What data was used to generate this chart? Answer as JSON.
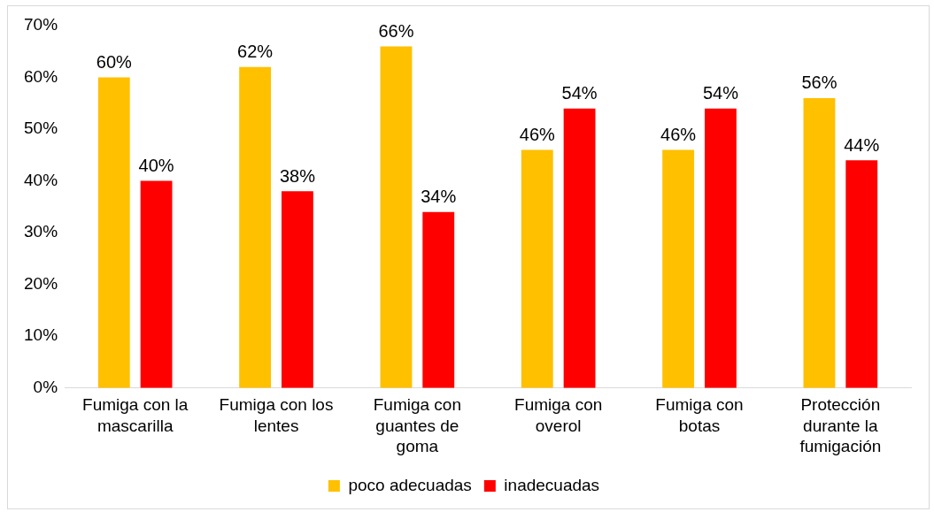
{
  "chart_data": {
    "type": "bar",
    "categories": [
      "Fumiga con la mascarilla",
      "Fumiga con los lentes",
      "Fumiga con guantes de goma",
      "Fumiga con overol",
      "Fumiga con botas",
      "Protección durante la fumigación"
    ],
    "series": [
      {
        "name": "poco adecuadas",
        "color": "#ffc000",
        "values": [
          60,
          62,
          66,
          46,
          46,
          56
        ],
        "value_labels": [
          "60%",
          "62%",
          "66%",
          "46%",
          "46%",
          "56%"
        ]
      },
      {
        "name": "inadecuadas",
        "color": "#ff0000",
        "values": [
          40,
          38,
          34,
          54,
          54,
          44
        ],
        "value_labels": [
          "40%",
          "38%",
          "34%",
          "54%",
          "54%",
          "44%"
        ]
      }
    ],
    "ylim": [
      0,
      70
    ],
    "yticks": [
      {
        "value": 0,
        "label": "0%"
      },
      {
        "value": 10,
        "label": "10%"
      },
      {
        "value": 20,
        "label": "20%"
      },
      {
        "value": 30,
        "label": "30%"
      },
      {
        "value": 40,
        "label": "40%"
      },
      {
        "value": 50,
        "label": "50%"
      },
      {
        "value": 60,
        "label": "60%"
      },
      {
        "value": 70,
        "label": "70%"
      }
    ],
    "grid": false,
    "legend": "bottom"
  }
}
